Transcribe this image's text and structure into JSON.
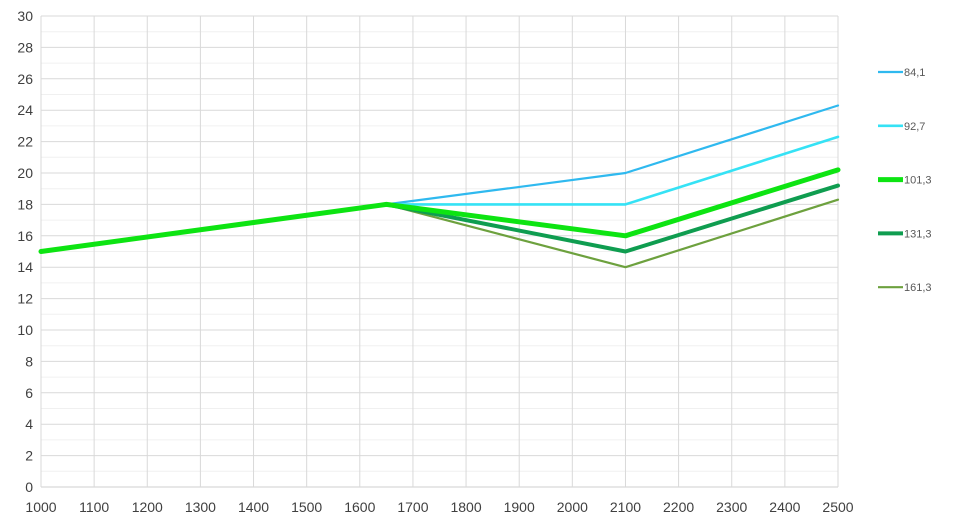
{
  "chart_data": {
    "type": "line",
    "title": "",
    "xlabel": "",
    "ylabel": "",
    "xlim": [
      1000,
      2500
    ],
    "ylim": [
      0,
      30
    ],
    "x_tick_step": 100,
    "y_label_step": 2,
    "y_grid_step": 1,
    "grid": true,
    "legend_position": "right",
    "x": [
      1000,
      1650,
      2100,
      2500
    ],
    "x_tick_labels": [
      "1000",
      "1100",
      "1200",
      "1300",
      "1400",
      "1500",
      "1600",
      "1700",
      "1800",
      "1900",
      "2000",
      "2100",
      "2200",
      "2300",
      "2400",
      "2500"
    ],
    "y_tick_labels": [
      "0",
      "2",
      "4",
      "6",
      "8",
      "10",
      "12",
      "14",
      "16",
      "18",
      "20",
      "22",
      "24",
      "26",
      "28",
      "30"
    ],
    "series": [
      {
        "name": "84,1",
        "color": "#2fb9ef",
        "stroke_width": 2.2,
        "values": [
          15,
          18,
          20,
          24.3
        ]
      },
      {
        "name": "92,7",
        "color": "#35e2f5",
        "stroke_width": 2.6,
        "values": [
          15,
          18,
          18,
          22.3
        ]
      },
      {
        "name": "101,3",
        "color": "#0de412",
        "stroke_width": 5,
        "values": [
          15,
          18,
          16,
          20.2
        ]
      },
      {
        "name": "131,3",
        "color": "#0f9d50",
        "stroke_width": 4,
        "values": [
          15,
          18,
          15,
          19.2
        ]
      },
      {
        "name": "161,3",
        "color": "#6da13e",
        "stroke_width": 2.2,
        "values": [
          15,
          18,
          14,
          18.3
        ]
      }
    ],
    "draw_order": [
      0,
      1,
      4,
      3,
      2
    ]
  },
  "style_colors": {
    "background": "#ffffff",
    "grid_major": "#d9d9d9",
    "grid_minor": "#f0f0f0",
    "axis_line": "#cfcfcf",
    "tick_text": "#404040",
    "legend_text": "#595959"
  }
}
